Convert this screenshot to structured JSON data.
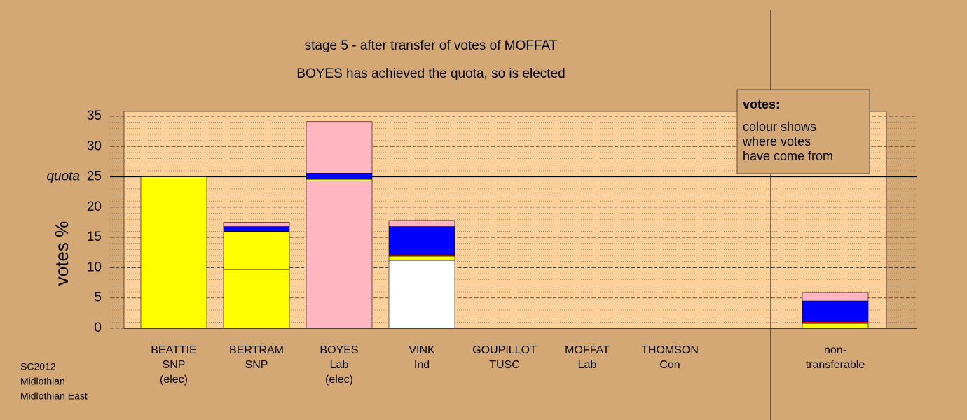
{
  "chart_data": {
    "type": "stacked-bar",
    "title": "stage 5 - after transfer of votes of MOFFAT",
    "subtitle": "BOYES has achieved the quota, so is elected",
    "y_label": "votes %",
    "categories": [
      [
        "BEATTIE",
        "SNP",
        "(elec)"
      ],
      [
        "BERTRAM",
        "SNP"
      ],
      [
        "BOYES",
        "Lab",
        "(elec)"
      ],
      [
        "VINK",
        "Ind"
      ],
      [
        "GOUPILLOT",
        "TUSC"
      ],
      [
        "MOFFAT",
        "Lab"
      ],
      [
        "THOMSON",
        "Con"
      ],
      [
        "non-",
        "transferable"
      ]
    ],
    "series": [
      {
        "colors": [
          "#ffff00",
          "#ffff00",
          "#ffb6c1",
          "#ffffff",
          "#ffffff",
          "#ffffff",
          "#ffffff",
          "#ffffff"
        ],
        "values": [
          25,
          9.7,
          24.3,
          11.2,
          0,
          0,
          0,
          0
        ]
      },
      {
        "color": "#ffff00",
        "values": [
          0,
          6.2,
          0.3,
          0.7,
          0,
          0,
          0,
          0.8
        ]
      },
      {
        "color": "#ff0000",
        "values": [
          0,
          0.1,
          0.1,
          0.2,
          0,
          0,
          0,
          0.3
        ]
      },
      {
        "color": "#0000ff",
        "values": [
          0,
          0.8,
          0.9,
          4.7,
          0,
          0,
          0,
          3.4
        ]
      },
      {
        "color": "#ffb6c1",
        "values": [
          0,
          0.7,
          8.5,
          1.0,
          0,
          0,
          0,
          1.4
        ]
      }
    ],
    "ylim": [
      0,
      35
    ],
    "yticks": [
      0,
      5,
      10,
      15,
      20,
      25,
      30,
      35
    ],
    "minor_grid_step": 1,
    "quota": 25,
    "quota_label": "quota",
    "legend_title": "votes:",
    "legend_text": [
      "colour shows",
      "where votes",
      "have come from"
    ],
    "footer": [
      "SC2012",
      "Midlothian",
      "Midlothian East"
    ]
  }
}
